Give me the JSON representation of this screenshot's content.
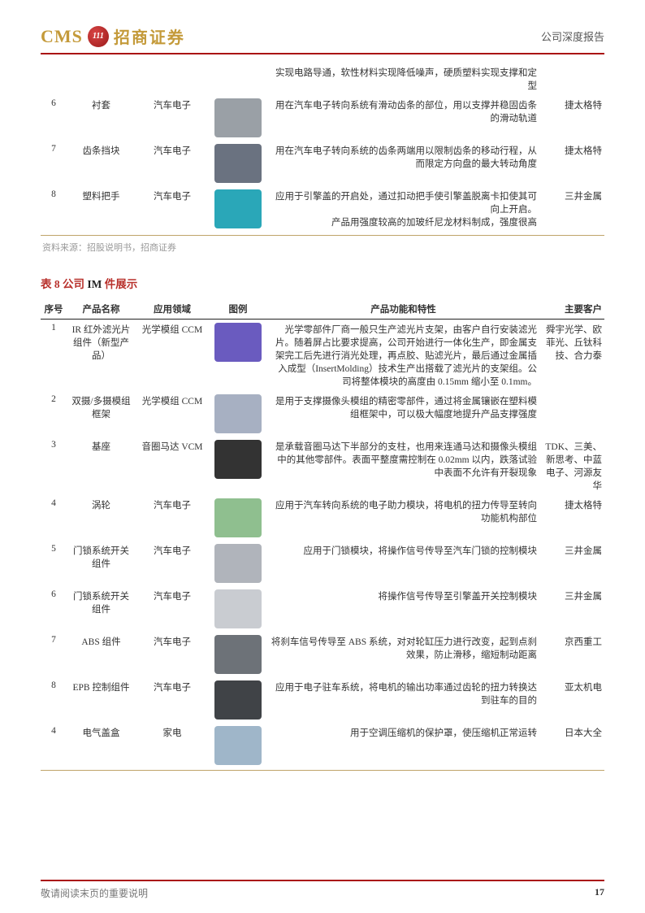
{
  "header": {
    "logo_cms": "CMS",
    "logo_badge": "111",
    "logo_cn": "招商证券",
    "right_text": "公司深度报告"
  },
  "colors": {
    "header_rule": "#aa1111",
    "gold_rule": "#bfa46a",
    "title_red": "#b8302b",
    "logo_gold": "#c49a3a"
  },
  "table1": {
    "rows": [
      {
        "idx": "",
        "name": "",
        "app": "",
        "func": "实现电路导通，软性材料实现降低噪声，硬质塑料实现支撑和定型",
        "cust": "",
        "ph_bg": "#ffffff"
      },
      {
        "idx": "6",
        "name": "衬套",
        "app": "汽车电子",
        "func": "用在汽车电子转向系统有滑动齿条的部位，用以支撑并稳固齿条的滑动轨道",
        "cust": "捷太格特",
        "ph_bg": "#9aa0a6"
      },
      {
        "idx": "7",
        "name": "齿条挡块",
        "app": "汽车电子",
        "func": "用在汽车电子转向系统的齿条两端用以限制齿条的移动行程，从而限定方向盘的最大转动角度",
        "cust": "捷太格特",
        "ph_bg": "#6a7280"
      },
      {
        "idx": "8",
        "name": "塑料把手",
        "app": "汽车电子",
        "func": "应用于引擎盖的开启处，通过扣动把手使引擎盖脱离卡扣使其可向上开启。\n产品用强度较高的加玻纤尼龙材料制成，强度很高",
        "cust": "三井金属",
        "ph_bg": "#2aa7b8"
      }
    ],
    "source": "资料来源：招股说明书，招商证券"
  },
  "table2_title": {
    "pre": "表 8 公司",
    "mid": " IM ",
    "post": "件展示"
  },
  "table2": {
    "headers": {
      "idx": "序号",
      "name": "产品名称",
      "app": "应用领域",
      "img": "图例",
      "func": "产品功能和特性",
      "cust": "主要客户"
    },
    "rows": [
      {
        "idx": "1",
        "name": "IR 红外滤光片组件（新型产品）",
        "app": "光学模组 CCM",
        "func": "光学零部件厂商一般只生产滤光片支架，由客户自行安装滤光片。随着屏占比要求提高，公司开始进行一体化生产，即金属支架完工后先进行消光处理，再点胶、贴滤光片，最后通过金属插入成型（InsertMolding）技术生产出搭载了滤光片的支架组。公司将整体模块的高度由 0.15mm 缩小至 0.1mm。",
        "cust": "舜宇光学、欧菲光、丘钛科技、合力泰",
        "ph_bg": "#6a5bbf"
      },
      {
        "idx": "2",
        "name": "双摄/多摄模组框架",
        "app": "光学模组 CCM",
        "func": "是用于支撑摄像头模组的精密零部件，通过将金属镶嵌在塑料模组框架中，可以极大幅度地提升产品支撑强度",
        "cust": "",
        "ph_bg": "#a7b0c2"
      },
      {
        "idx": "3",
        "name": "基座",
        "app": "音圈马达 VCM",
        "func": "是承载音圈马达下半部分的支柱，也用来连通马达和摄像头模组中的其他零部件。表面平整度需控制在 0.02mm 以内，跌落试验中表面不允许有开裂现象",
        "cust": "TDK、三美、新思考、中蓝电子、河源友华",
        "ph_bg": "#333333"
      },
      {
        "idx": "4",
        "name": "涡轮",
        "app": "汽车电子",
        "func": "应用于汽车转向系统的电子助力模块，将电机的扭力传导至转向功能机构部位",
        "cust": "捷太格特",
        "ph_bg": "#8fbf8f"
      },
      {
        "idx": "5",
        "name": "门锁系统开关组件",
        "app": "汽车电子",
        "func": "应用于门锁模块，将操作信号传导至汽车门锁的控制模块",
        "cust": "三井金属",
        "ph_bg": "#b0b4bb"
      },
      {
        "idx": "6",
        "name": "门锁系统开关组件",
        "app": "汽车电子",
        "func": "将操作信号传导至引擎盖开关控制模块",
        "cust": "三井金属",
        "ph_bg": "#c9ccd1"
      },
      {
        "idx": "7",
        "name": "ABS 组件",
        "app": "汽车电子",
        "func": "将刹车信号传导至 ABS 系统，对对轮缸压力进行改变，起到点刹效果，防止滑移，缩短制动距离",
        "cust": "京西重工",
        "ph_bg": "#6d7278"
      },
      {
        "idx": "8",
        "name": "EPB 控制组件",
        "app": "汽车电子",
        "func": "应用于电子驻车系统，将电机的输出功率通过齿轮的扭力转换达到驻车的目的",
        "cust": "亚太机电",
        "ph_bg": "#404347"
      },
      {
        "idx": "4",
        "name": "电气盖盒",
        "app": "家电",
        "func": "用于空调压缩机的保护罩，使压缩机正常运转",
        "cust": "日本大全",
        "ph_bg": "#9fb6c9"
      }
    ]
  },
  "footer": {
    "left": "敬请阅读末页的重要说明",
    "page": "17"
  }
}
